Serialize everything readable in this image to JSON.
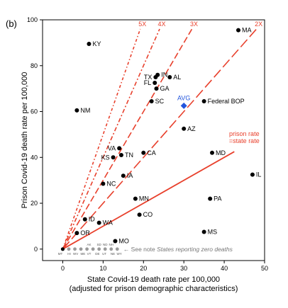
{
  "panel_label": "(b)",
  "chart_data": {
    "type": "scatter",
    "xlabel": "State Covid-19 death rate per 100,000",
    "xlabel2": "(adjusted for prison demographic characteristics)",
    "ylabel": "Prison Covid-19 death rate per 100,000",
    "xlim": [
      -5,
      50
    ],
    "ylim": [
      -5,
      100
    ],
    "xticks": [
      0,
      10,
      20,
      30,
      40,
      50
    ],
    "yticks": [
      0,
      20,
      40,
      60,
      80,
      100
    ],
    "grid": false,
    "points": [
      {
        "label": "KY",
        "x": 6.5,
        "y": 89.5
      },
      {
        "label": "MA",
        "x": 43.5,
        "y": 95.5
      },
      {
        "label": "IN",
        "x": 23.5,
        "y": 76
      },
      {
        "label": "TX",
        "x": 23,
        "y": 75
      },
      {
        "label": "AL",
        "x": 26.5,
        "y": 75
      },
      {
        "label": "FL",
        "x": 22.8,
        "y": 72.5
      },
      {
        "label": "GA",
        "x": 23.2,
        "y": 70
      },
      {
        "label": "SC",
        "x": 22,
        "y": 64.5
      },
      {
        "label": "Federal BOP",
        "x": 35,
        "y": 64.5
      },
      {
        "label": "NM",
        "x": 3.5,
        "y": 60.5
      },
      {
        "label": "AZ",
        "x": 30,
        "y": 52.5
      },
      {
        "label": "VA",
        "x": 14,
        "y": 44
      },
      {
        "label": "KS",
        "x": 12.5,
        "y": 40
      },
      {
        "label": "TN",
        "x": 14.5,
        "y": 41
      },
      {
        "label": "CA",
        "x": 20,
        "y": 42
      },
      {
        "label": "MD",
        "x": 37,
        "y": 42
      },
      {
        "label": "IL",
        "x": 47,
        "y": 32.5
      },
      {
        "label": "IA",
        "x": 15,
        "y": 32
      },
      {
        "label": "NC",
        "x": 10,
        "y": 28.5
      },
      {
        "label": "MN",
        "x": 18,
        "y": 22
      },
      {
        "label": "PA",
        "x": 36.5,
        "y": 22
      },
      {
        "label": "ID",
        "x": 5.5,
        "y": 13
      },
      {
        "label": "WA",
        "x": 9,
        "y": 11.5
      },
      {
        "label": "CO",
        "x": 19,
        "y": 15
      },
      {
        "label": "OR",
        "x": 3.5,
        "y": 7
      },
      {
        "label": "MS",
        "x": 35,
        "y": 7.5
      },
      {
        "label": "MO",
        "x": 13,
        "y": 3.5
      }
    ],
    "avg_point": {
      "label": "AVG",
      "x": 30,
      "y": 62.5,
      "color": "#2255dd"
    },
    "multiplier_lines": [
      {
        "label": "2X",
        "k": 2
      },
      {
        "label": "3X",
        "k": 3
      },
      {
        "label": "4X",
        "k": 4
      },
      {
        "label": "5X",
        "k": 5
      }
    ],
    "equal_line": {
      "label_line1": "prison rate",
      "label_line2": "=state rate",
      "k": 1
    },
    "line_color": "#e8402c",
    "zero_states_top": [
      "AK",
      "SD",
      "ND",
      "NH"
    ],
    "zero_states_bottom": [
      "MT",
      "HI",
      "WV",
      "ME",
      "VT",
      "DE",
      "UT",
      "NE",
      "WY"
    ],
    "zero_note_prefix": "<- See note ",
    "zero_note_italic": "States reporting zero deaths"
  }
}
